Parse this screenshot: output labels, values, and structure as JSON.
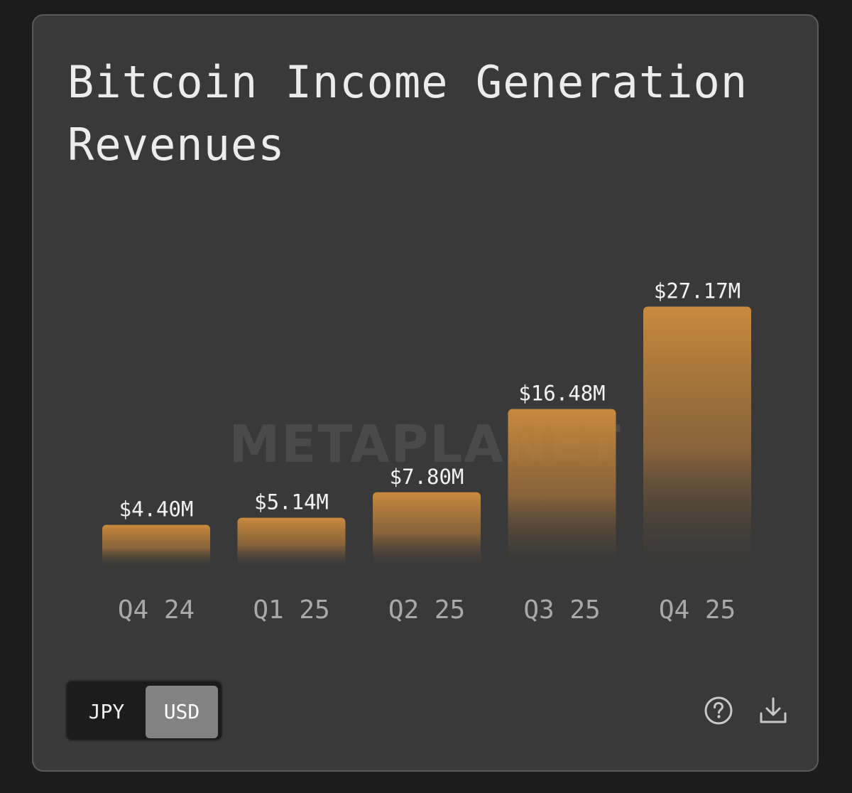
{
  "card": {
    "title": "Bitcoin Income Generation Revenues"
  },
  "watermark": "METAPLANET",
  "currency_toggle": {
    "options": [
      "JPY",
      "USD"
    ],
    "selected": "USD"
  },
  "icons": {
    "help": "help-circle-icon",
    "download": "download-icon"
  },
  "colors": {
    "bar_top": "#c98a3e",
    "card_background": "#393939",
    "page_background": "#1c1c1c"
  },
  "chart_data": {
    "type": "bar",
    "title": "Bitcoin Income Generation Revenues",
    "categories": [
      "Q4 24",
      "Q1 25",
      "Q2 25",
      "Q3 25",
      "Q4 25"
    ],
    "values": [
      4.4,
      5.14,
      7.8,
      16.48,
      27.17
    ],
    "value_labels": [
      "$4.40M",
      "$5.14M",
      "$7.80M",
      "$16.48M",
      "$27.17M"
    ],
    "unit": "USD millions",
    "ylim": [
      0,
      30
    ],
    "grid": false,
    "legend": "none"
  }
}
